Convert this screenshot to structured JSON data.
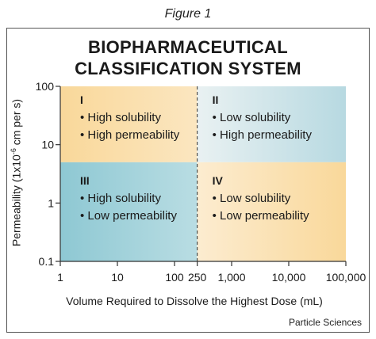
{
  "figure_caption": "Figure 1",
  "title_line1": "BIOPHARMACEUTICAL",
  "title_line2": "CLASSIFICATION SYSTEM",
  "y_axis_label": "Permeability (1x10",
  "y_axis_label_sup": "-6",
  "y_axis_label_rest": " cm per s)",
  "x_axis_label": "Volume Required to Dissolve the Highest Dose (mL)",
  "credit": "Particle Sciences",
  "colors": {
    "class_I": "#f9d89a",
    "class_II": "#b7d9e1",
    "class_III": "#8ec8d3",
    "class_IV": "#f9d89a",
    "axis": "#333333",
    "divider": "#333333"
  },
  "y_ticks": [
    {
      "value": 100,
      "label": "100"
    },
    {
      "value": 10,
      "label": "10"
    },
    {
      "value": 1,
      "label": "1"
    },
    {
      "value": 0.1,
      "label": "0.1"
    }
  ],
  "x_ticks": [
    {
      "value": 1,
      "label": "1"
    },
    {
      "value": 10,
      "label": "10"
    },
    {
      "value": 100,
      "label": "100"
    },
    {
      "value": 250,
      "label": "250"
    },
    {
      "value": 1000,
      "label": "1,000"
    },
    {
      "value": 10000,
      "label": "10,000"
    },
    {
      "value": 100000,
      "label": "100,000"
    }
  ],
  "quadrants": [
    {
      "id": "I",
      "label": "I",
      "lines": [
        "• High solubility",
        "• High permeability"
      ]
    },
    {
      "id": "II",
      "label": "II",
      "lines": [
        "• Low solubility",
        "• High permeability"
      ]
    },
    {
      "id": "III",
      "label": "III",
      "lines": [
        "• High solubility",
        "• Low permeability"
      ]
    },
    {
      "id": "IV",
      "label": "IV",
      "lines": [
        "• Low solubility",
        "• Low permeability"
      ]
    }
  ],
  "boundaries": {
    "volume_ml": 250,
    "permeability": 5
  }
}
